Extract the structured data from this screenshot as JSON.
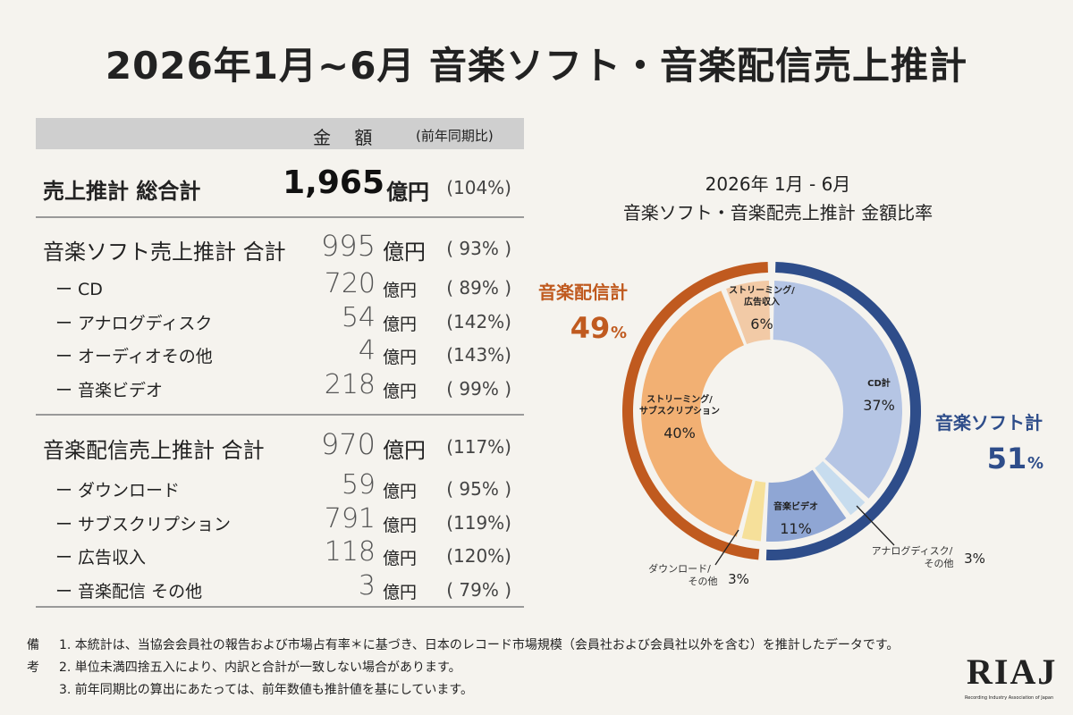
{
  "title": "2026年1月~6月 音楽ソフト・音楽配信売上推計",
  "table": {
    "header_amount": "金 額",
    "header_yoy": "(前年同期比)",
    "total": {
      "label": "売上推計 総合計",
      "value": "1,965",
      "unit": "億円",
      "yoy": "(104%)"
    },
    "soft": {
      "label": "音楽ソフト売上推計 合計",
      "value": "995",
      "unit": "億円",
      "yoy": "( 93% )",
      "items": [
        {
          "label": "ー CD",
          "value": "720",
          "unit": "億円",
          "yoy": "( 89% )"
        },
        {
          "label": "ー アナログディスク",
          "value": "54",
          "unit": "億円",
          "yoy": "(142%)"
        },
        {
          "label": "ー オーディオその他",
          "value": "4",
          "unit": "億円",
          "yoy": "(143%)"
        },
        {
          "label": "ー 音楽ビデオ",
          "value": "218",
          "unit": "億円",
          "yoy": "( 99% )"
        }
      ]
    },
    "digital": {
      "label": "音楽配信売上推計 合計",
      "value": "970",
      "unit": "億円",
      "yoy": "(117%)",
      "items": [
        {
          "label": "ー ダウンロード",
          "value": "59",
          "unit": "億円",
          "yoy": "( 95% )"
        },
        {
          "label": "ー サブスクリプション",
          "value": "791",
          "unit": "億円",
          "yoy": "(119%)"
        },
        {
          "label": "ー 広告収入",
          "value": "118",
          "unit": "億円",
          "yoy": "(120%)"
        },
        {
          "label": "ー 音楽配信 その他",
          "value": "3",
          "unit": "億円",
          "yoy": "( 79% )"
        }
      ]
    }
  },
  "chart_data": {
    "type": "pie",
    "title": [
      "2026年 1月 - 6月",
      "音楽ソフト・音楽配売上推計 金額比率"
    ],
    "outer": [
      {
        "name": "音楽ソフト計",
        "value": 51,
        "label": "51",
        "pct_sign": "%",
        "color": "#2e4d8a"
      },
      {
        "name": "音楽配信計",
        "value": 49,
        "label": "49",
        "pct_sign": "%",
        "color": "#c05a1f"
      }
    ],
    "inner": [
      {
        "name": "CD計",
        "value": 37,
        "label": "37%",
        "color": "#b5c5e4"
      },
      {
        "name": "アナログディスク/ その他",
        "value": 3,
        "label": "3%",
        "color": "#c7dcee"
      },
      {
        "name": "音楽ビデオ",
        "value": 11,
        "label": "11%",
        "color": "#8fa6d4"
      },
      {
        "name": "ダウンロード/ その他",
        "value": 3,
        "label": "3%",
        "color": "#f6e09a"
      },
      {
        "name": "ストリーミング/ サブスクリプション",
        "value": 40,
        "label": "40%",
        "color": "#f2b073"
      },
      {
        "name": "ストリーミング/ 広告収入",
        "value": 6,
        "label": "6%",
        "color": "#f2caa6"
      }
    ]
  },
  "notes": {
    "lead": "備考",
    "lines": [
      "1. 本統計は、当協会会員社の報告および市場占有率＊に基づき、日本のレコード市場規模（会員社および会員社以外を含む）を推計したデータです。",
      "2. 単位未満四捨五入により、内訳と合計が一致しない場合があります。",
      "3. 前年同期比の算出にあたっては、前年数値も推計値を基にしています。"
    ]
  },
  "logo": {
    "mark": "RIAJ",
    "sub": "Recording Industry Association of Japan"
  }
}
